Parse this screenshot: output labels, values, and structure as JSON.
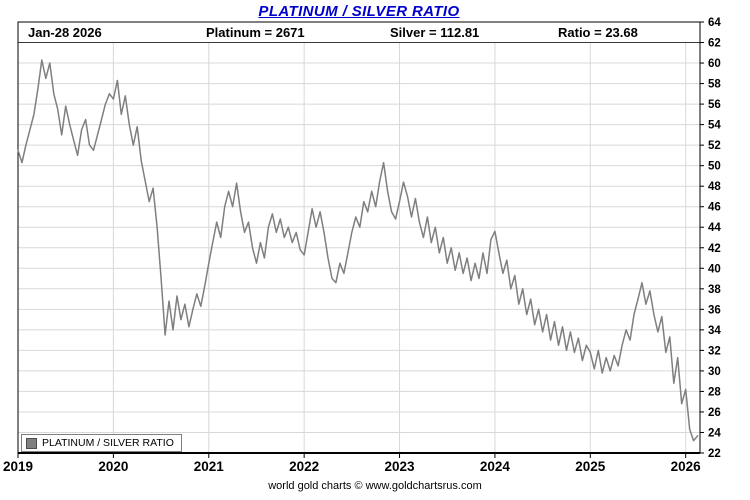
{
  "title": "PLATINUM / SILVER RATIO",
  "header": {
    "date": "Jan-28  2026",
    "platinum": "Platinum = 2671",
    "silver": "Silver = 112.81",
    "ratio": "Ratio = 23.68"
  },
  "legend": {
    "label": "PLATINUM / SILVER RATIO",
    "swatch_color": "#808080"
  },
  "footer": "world gold charts © www.goldchartsrus.com",
  "colors": {
    "title": "#0000cc",
    "series": "#7f7f7f",
    "grid": "#d8d8d8",
    "header_rule": "#3a3a3a",
    "axis": "#000000"
  },
  "chart_data": {
    "type": "line",
    "title": "PLATINUM / SILVER RATIO",
    "series_name": "PLATINUM / SILVER RATIO",
    "x_ticks": [
      2019,
      2020,
      2021,
      2022,
      2023,
      2024,
      2025,
      2026
    ],
    "x_range": [
      2019.0,
      2026.15
    ],
    "x_start": 2019.0,
    "x_step": 0.0416667,
    "ylim": [
      22,
      64
    ],
    "y_tick_step": 2,
    "grid": true,
    "legend_position": "bottom-left",
    "last_point": {
      "date": "Jan-28 2026",
      "platinum": 2671,
      "silver": 112.81,
      "ratio": 23.68
    },
    "values": [
      51.5,
      50.3,
      52.0,
      53.5,
      55.0,
      57.5,
      60.3,
      58.5,
      60.0,
      57.0,
      55.5,
      53.0,
      55.8,
      54.0,
      52.5,
      51.0,
      53.5,
      54.5,
      52.0,
      51.5,
      53.0,
      54.5,
      56.0,
      57.0,
      56.5,
      58.3,
      55.0,
      56.8,
      54.0,
      52.0,
      53.8,
      50.5,
      48.5,
      46.5,
      47.8,
      44.0,
      39.0,
      33.5,
      36.8,
      34.0,
      37.3,
      35.0,
      36.5,
      34.3,
      36.0,
      37.5,
      36.3,
      38.3,
      40.5,
      42.5,
      44.5,
      43.0,
      46.0,
      47.5,
      46.0,
      48.3,
      45.5,
      43.5,
      44.5,
      42.0,
      40.5,
      42.5,
      41.0,
      44.0,
      45.3,
      43.5,
      44.8,
      43.0,
      44.0,
      42.5,
      43.5,
      41.8,
      41.3,
      43.5,
      45.8,
      44.0,
      45.5,
      43.5,
      41.0,
      39.0,
      38.6,
      40.5,
      39.5,
      41.5,
      43.5,
      45.0,
      44.0,
      46.5,
      45.5,
      47.5,
      46.0,
      48.5,
      50.3,
      47.5,
      45.5,
      44.8,
      46.5,
      48.4,
      47.0,
      45.0,
      46.8,
      44.5,
      43.0,
      45.0,
      42.5,
      44.0,
      41.5,
      43.0,
      40.5,
      42.0,
      39.8,
      41.5,
      39.5,
      41.0,
      38.8,
      40.5,
      39.0,
      41.5,
      39.5,
      42.8,
      43.6,
      41.5,
      39.5,
      40.8,
      38.0,
      39.3,
      36.5,
      38.0,
      35.5,
      37.0,
      34.5,
      36.0,
      33.8,
      35.5,
      33.0,
      34.8,
      32.5,
      34.3,
      32.0,
      33.8,
      31.8,
      33.2,
      31.0,
      32.5,
      31.8,
      30.2,
      32.0,
      29.8,
      31.3,
      30.0,
      31.5,
      30.5,
      32.5,
      34.0,
      33.0,
      35.5,
      37.0,
      38.6,
      36.5,
      37.8,
      35.5,
      33.8,
      35.3,
      31.8,
      33.3,
      28.8,
      31.3,
      26.8,
      28.2,
      24.3,
      23.2,
      23.68
    ]
  }
}
